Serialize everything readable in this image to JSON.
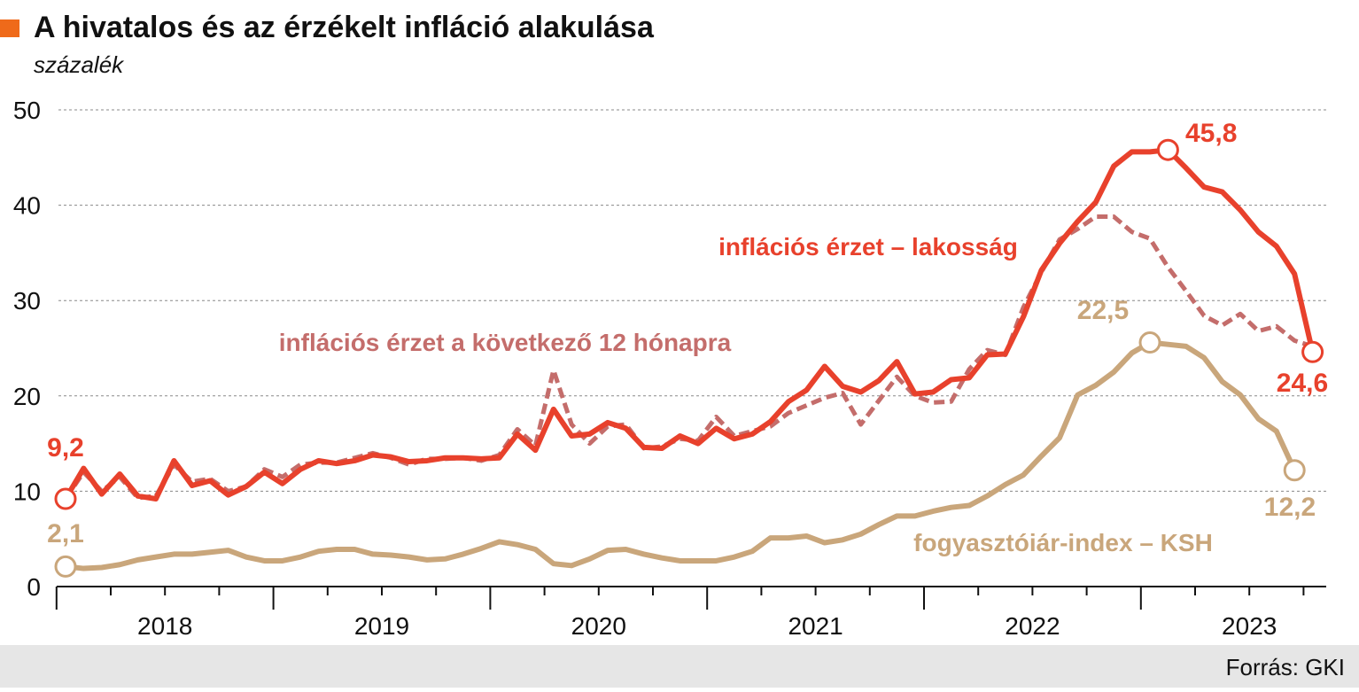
{
  "chart_data": {
    "type": "line",
    "title": "A hivatalos és az érzékelt infláció alakulása",
    "subtitle": "százalék",
    "source": "Forrás: GKI",
    "categories": [
      null,
      null,
      null,
      null,
      null,
      "2018",
      null,
      null,
      null,
      null,
      null,
      null,
      null,
      null,
      null,
      null,
      null,
      "2019",
      null,
      null,
      null,
      null,
      null,
      null,
      null,
      null,
      null,
      null,
      null,
      "2020",
      null,
      null,
      null,
      null,
      null,
      null,
      null,
      null,
      null,
      null,
      null,
      "2021",
      null,
      null,
      null,
      null,
      null,
      null,
      null,
      null,
      null,
      null,
      null,
      "2022",
      null,
      null,
      null,
      null,
      null,
      null,
      null,
      null,
      null,
      null,
      null,
      "2023",
      null,
      null,
      null,
      null
    ],
    "ylim": [
      0,
      50
    ],
    "yticks": [
      0,
      10,
      20,
      30,
      40,
      50
    ],
    "grid": true,
    "series": [
      {
        "name": "fogyasztóiár-index – KSH",
        "color": "#c9a67b",
        "dashed": false,
        "values": [
          2.1,
          1.9,
          2.0,
          2.3,
          2.8,
          3.1,
          3.4,
          3.4,
          3.6,
          3.8,
          3.1,
          2.7,
          2.7,
          3.1,
          3.7,
          3.9,
          3.9,
          3.4,
          3.3,
          3.1,
          2.8,
          2.9,
          3.4,
          4.0,
          4.7,
          4.4,
          3.9,
          2.4,
          2.2,
          2.9,
          3.8,
          3.9,
          3.4,
          3.0,
          2.7,
          2.7,
          2.7,
          3.1,
          3.7,
          5.1,
          5.1,
          5.3,
          4.6,
          4.9,
          5.5,
          6.5,
          7.4,
          7.4,
          7.9,
          8.3,
          8.5,
          9.5,
          10.7,
          11.7,
          13.7,
          15.6,
          20.1,
          21.1,
          22.5,
          24.5,
          25.6,
          25.4,
          25.2,
          24.0,
          21.5,
          20.1,
          17.6,
          16.3,
          12.2,
          null
        ],
        "value_labels": [
          "2,1",
          null,
          null,
          null,
          null,
          null,
          null,
          null,
          null,
          null,
          null,
          null,
          null,
          null,
          null,
          null,
          null,
          null,
          null,
          null,
          null,
          null,
          null,
          null,
          null,
          null,
          null,
          null,
          null,
          null,
          null,
          null,
          null,
          null,
          null,
          null,
          null,
          null,
          null,
          null,
          null,
          null,
          null,
          null,
          null,
          null,
          null,
          null,
          null,
          null,
          null,
          null,
          null,
          null,
          null,
          null,
          null,
          null,
          null,
          null,
          null,
          null,
          null,
          null,
          null,
          null,
          null,
          null,
          "12,2",
          null
        ]
      },
      {
        "name": "inflációs érzet a következő 12 hónapra",
        "color": "#c46d6b",
        "dashed": true,
        "values": [
          9.2,
          12.0,
          10.0,
          11.5,
          9.3,
          9.5,
          12.8,
          11.0,
          11.3,
          10.0,
          10.5,
          12.3,
          11.5,
          12.8,
          13.0,
          13.0,
          13.5,
          14.0,
          13.5,
          12.8,
          13.4,
          13.4,
          13.5,
          13.2,
          13.8,
          16.5,
          14.8,
          22.7,
          17.0,
          15.0,
          16.8,
          17.0,
          14.5,
          14.7,
          15.5,
          15.3,
          17.8,
          15.8,
          16.3,
          16.8,
          18.2,
          19.0,
          19.8,
          20.3,
          17.0,
          19.5,
          22.0,
          20.0,
          19.3,
          19.4,
          22.8,
          24.8,
          24.3,
          29.3,
          33.0,
          36.4,
          37.5,
          38.8,
          38.8,
          37.2,
          36.5,
          33.5,
          31.0,
          28.4,
          27.4,
          28.6,
          26.8,
          27.3,
          25.8,
          25.2
        ]
      },
      {
        "name": "inflációs érzet – lakosság",
        "color": "#e8412c",
        "dashed": false,
        "values": [
          9.2,
          12.4,
          9.7,
          11.8,
          9.5,
          9.2,
          13.2,
          10.6,
          11.1,
          9.6,
          10.5,
          12.0,
          10.8,
          12.3,
          13.2,
          12.9,
          13.2,
          13.8,
          13.6,
          13.1,
          13.2,
          13.5,
          13.5,
          13.4,
          13.5,
          16.0,
          14.3,
          18.6,
          15.8,
          16.0,
          17.2,
          16.6,
          14.6,
          14.5,
          15.8,
          15.0,
          16.6,
          15.5,
          16.0,
          17.3,
          19.4,
          20.6,
          23.1,
          21.0,
          20.4,
          21.6,
          23.6,
          20.2,
          20.4,
          21.7,
          21.9,
          24.3,
          24.4,
          28.3,
          33.2,
          36.0,
          38.3,
          40.3,
          44.1,
          45.6,
          45.6,
          45.8,
          43.9,
          41.9,
          41.4,
          39.5,
          37.2,
          35.7,
          32.8,
          24.6
        ],
        "value_labels": [
          "9,2",
          null,
          null,
          null,
          null,
          null,
          null,
          null,
          null,
          null,
          null,
          null,
          null,
          null,
          null,
          null,
          null,
          null,
          null,
          null,
          null,
          null,
          null,
          null,
          null,
          null,
          null,
          null,
          null,
          null,
          null,
          null,
          null,
          null,
          null,
          null,
          null,
          null,
          null,
          null,
          null,
          null,
          null,
          null,
          null,
          null,
          null,
          null,
          null,
          null,
          null,
          null,
          null,
          null,
          null,
          null,
          null,
          null,
          null,
          null,
          null,
          "45,8",
          null,
          null,
          null,
          null,
          null,
          null,
          null,
          "24,6"
        ]
      }
    ],
    "annotations": [
      "22,5"
    ]
  }
}
